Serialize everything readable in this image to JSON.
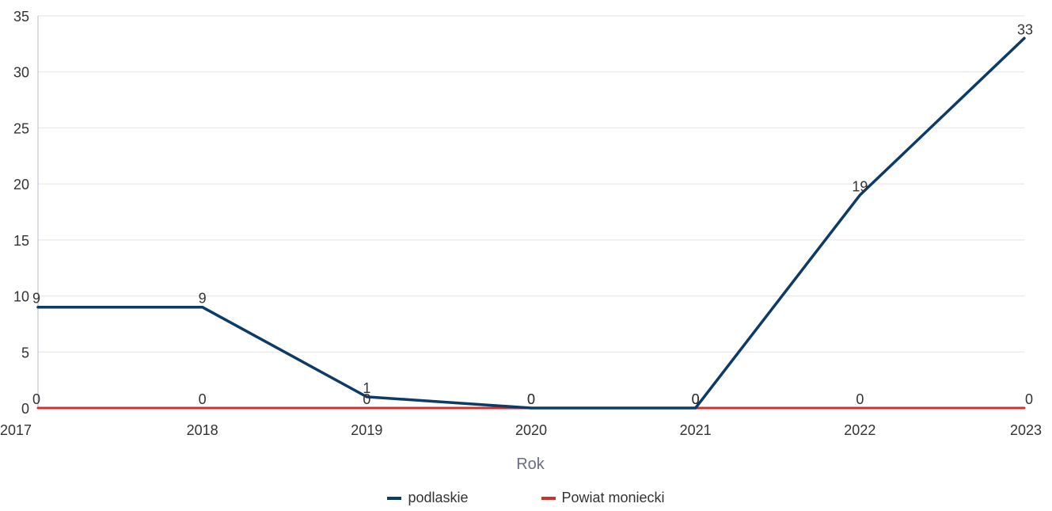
{
  "chart_data": {
    "type": "line",
    "x": [
      "2017",
      "2018",
      "2019",
      "2020",
      "2021",
      "2022",
      "2023"
    ],
    "xlabel": "Rok",
    "ylabel": "",
    "ylim": [
      0,
      35
    ],
    "yticks": [
      0,
      5,
      10,
      15,
      20,
      25,
      30,
      35
    ],
    "grid": true,
    "legend_position": "bottom",
    "series": [
      {
        "name": "podlaskie",
        "color": "#0d3b66",
        "values": [
          9,
          9,
          1,
          0,
          0,
          19,
          33
        ],
        "labels": [
          "9",
          "9",
          "1",
          "0",
          "0",
          "19",
          "33"
        ]
      },
      {
        "name": "Powiat moniecki",
        "color": "#d32f2f",
        "values": [
          0,
          0,
          0,
          0,
          0,
          0,
          0
        ],
        "labels": [
          "0",
          "0",
          "0",
          "0",
          "0",
          "0",
          "0"
        ]
      }
    ]
  }
}
